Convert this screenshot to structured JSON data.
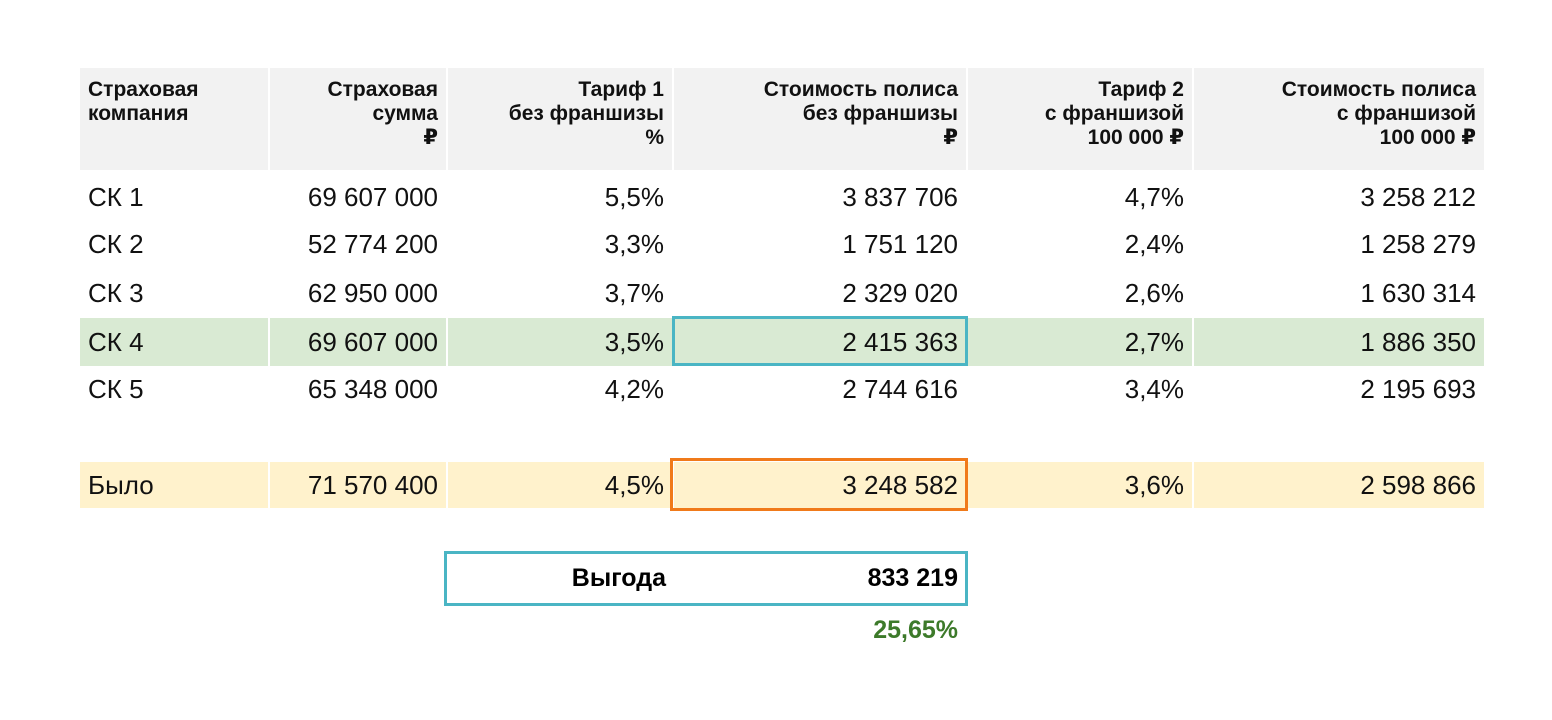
{
  "table": {
    "header": [
      [
        "Страховая",
        "компания"
      ],
      [
        "Страховая",
        "сумма",
        "₽"
      ],
      [
        "Тариф 1",
        "без франшизы",
        "%"
      ],
      [
        "Стоимость полиса",
        "без франшизы",
        "₽"
      ],
      [
        "Тариф 2",
        "с франшизой",
        "100 000 ₽"
      ],
      [
        "Стоимость полиса",
        "с франшизой",
        "100 000 ₽"
      ]
    ],
    "rows": [
      [
        "СК 1",
        "69 607 000",
        "5,5%",
        "3 837 706",
        "4,7%",
        "3 258 212"
      ],
      [
        "СК 2",
        "52 774 200",
        "3,3%",
        "1 751 120",
        "2,4%",
        "1 258 279"
      ],
      [
        "СК 3",
        "62 950 000",
        "3,7%",
        "2 329 020",
        "2,6%",
        "1 630 314"
      ],
      [
        "СК 4",
        "69 607 000",
        "3,5%",
        "2 415 363",
        "2,7%",
        "1 886 350"
      ],
      [
        "СК 5",
        "65 348 000",
        "4,2%",
        "2 744 616",
        "3,4%",
        "2 195 693"
      ]
    ],
    "total": [
      "Было",
      "71 570 400",
      "4,5%",
      "3 248 582",
      "3,6%",
      "2 598 866"
    ]
  },
  "benefit": {
    "label": "Выгода",
    "value": "833 219",
    "percent": "25,65%"
  }
}
